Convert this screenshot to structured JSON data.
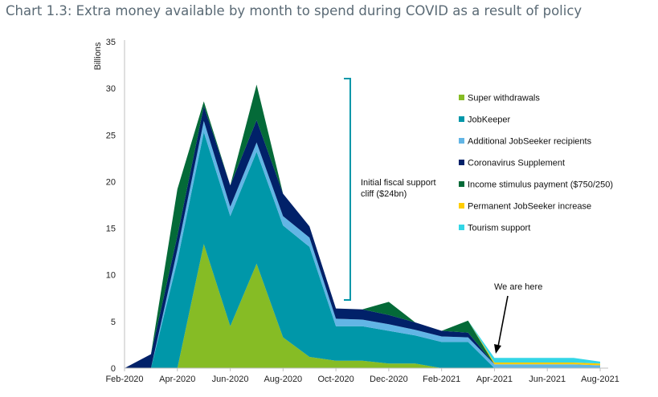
{
  "chart_data": {
    "type": "area",
    "title": "Chart 1.3: Extra money available by month to spend during COVID as a result of policy",
    "ylabel": "Billions",
    "ylim": [
      0,
      35
    ],
    "yticks": [
      0,
      5,
      10,
      15,
      20,
      25,
      30,
      35
    ],
    "stacked": true,
    "x": [
      "Feb-2020",
      "Mar-2020",
      "Apr-2020",
      "May-2020",
      "Jun-2020",
      "Jul-2020",
      "Aug-2020",
      "Sep-2020",
      "Oct-2020",
      "Nov-2020",
      "Dec-2020",
      "Jan-2021",
      "Feb-2021",
      "Mar-2021",
      "Apr-2021",
      "May-2021",
      "Jun-2021",
      "Jul-2021",
      "Aug-2021"
    ],
    "xtick_labels": [
      "Feb-2020",
      "Apr-2020",
      "Jun-2020",
      "Aug-2020",
      "Oct-2020",
      "Dec-2020",
      "Feb-2021",
      "Apr-2021",
      "Jun-2021",
      "Aug-2021"
    ],
    "legend_position": "right",
    "series": [
      {
        "name": "Super withdrawals",
        "color": "#86bc25",
        "values": [
          0,
          0,
          0,
          13.3,
          4.5,
          11.2,
          3.3,
          1.2,
          0.8,
          0.8,
          0.5,
          0.5,
          0,
          0,
          0,
          0,
          0,
          0,
          0
        ]
      },
      {
        "name": "JobKeeper",
        "color": "#0097a9",
        "values": [
          0,
          0,
          11.5,
          12.0,
          11.8,
          12.0,
          12.0,
          11.8,
          3.7,
          3.7,
          3.5,
          3.0,
          2.8,
          2.8,
          0,
          0,
          0,
          0,
          0
        ]
      },
      {
        "name": "Additional JobSeeker recipients",
        "color": "#62b5e5",
        "values": [
          0,
          0,
          1.2,
          1.2,
          1.0,
          1.0,
          1.0,
          1.0,
          0.8,
          0.7,
          0.7,
          0.6,
          0.6,
          0.5,
          0.4,
          0.4,
          0.4,
          0.4,
          0.3
        ]
      },
      {
        "name": "Coronavirus Supplement",
        "color": "#012169",
        "values": [
          0,
          1.5,
          1.5,
          1.6,
          2.3,
          2.4,
          2.4,
          1.2,
          1.1,
          1.1,
          1.0,
          0.8,
          0.6,
          0.5,
          0,
          0,
          0,
          0,
          0
        ]
      },
      {
        "name": "Income stimulus payment ($750/250)",
        "color": "#046a38",
        "values": [
          0,
          0,
          5.0,
          0.5,
          0,
          3.8,
          0,
          0,
          0,
          0,
          1.4,
          0,
          0,
          1.3,
          0,
          0,
          0,
          0,
          0
        ]
      },
      {
        "name": "Permanent JobSeeker increase",
        "color": "#ffcd00",
        "values": [
          0,
          0,
          0,
          0,
          0,
          0,
          0,
          0,
          0,
          0,
          0,
          0,
          0,
          0,
          0.2,
          0.2,
          0.2,
          0.2,
          0.2
        ]
      },
      {
        "name": "Tourism support",
        "color": "#33d6e6",
        "values": [
          0,
          0,
          0,
          0,
          0,
          0,
          0,
          0,
          0,
          0,
          0,
          0,
          0,
          0,
          0.5,
          0.5,
          0.5,
          0.5,
          0.2
        ]
      }
    ],
    "annotations": [
      {
        "text_lines": [
          "Initial fiscal support",
          "cliff ($24bn)"
        ]
      },
      {
        "text": "We are here"
      }
    ]
  }
}
